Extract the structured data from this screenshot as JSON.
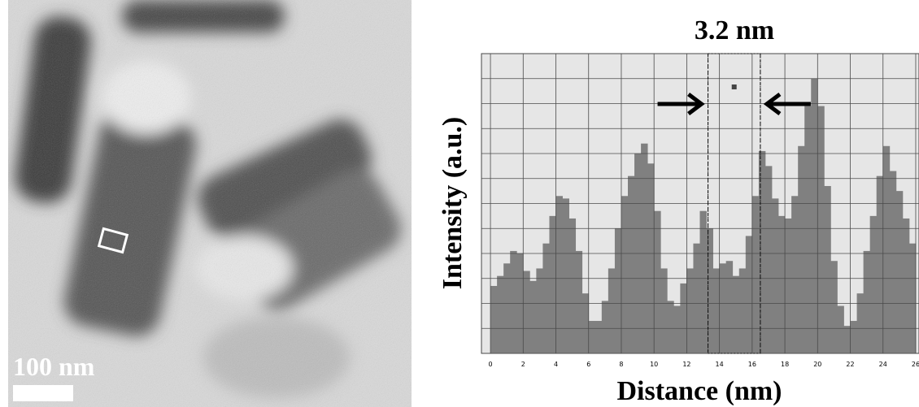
{
  "image": {
    "scale_bar_label": "100 nm"
  },
  "chart_data": {
    "type": "histogram",
    "annotation": "3.2 nm",
    "x_label": "Distance (nm)",
    "y_label": "Intensity (a.u.)",
    "bins": [
      0,
      0.4,
      0.8,
      1.2,
      1.6,
      2.0,
      2.4,
      2.8,
      3.2,
      3.6,
      4.0,
      4.4,
      4.8,
      5.2,
      5.6,
      6.0,
      6.4,
      6.8,
      7.2,
      7.6,
      8.0,
      8.4,
      8.8,
      9.2,
      9.6,
      10.0,
      10.4,
      10.8,
      11.2,
      11.6,
      12.0,
      12.4,
      12.8,
      13.2,
      13.6,
      14.0,
      14.4,
      14.8,
      15.2,
      15.6,
      16.0,
      16.4,
      16.8,
      17.2,
      17.6,
      18.0,
      18.4,
      18.8,
      19.2,
      19.6,
      20.0,
      20.4,
      20.8,
      21.2,
      21.6,
      22.0,
      22.4,
      22.8,
      23.2,
      23.6,
      24.0,
      24.4,
      24.8,
      25.2,
      25.6,
      26.0
    ],
    "values": [
      2.7,
      3.1,
      3.6,
      4.1,
      4.0,
      3.3,
      2.9,
      3.4,
      4.4,
      5.5,
      6.3,
      6.2,
      5.4,
      4.1,
      2.4,
      1.3,
      1.3,
      2.1,
      3.4,
      5.0,
      6.3,
      7.1,
      8.0,
      8.4,
      7.6,
      5.7,
      3.4,
      2.1,
      1.9,
      2.8,
      3.4,
      4.4,
      5.7,
      5.0,
      3.4,
      3.6,
      3.7,
      3.1,
      3.4,
      4.7,
      6.3,
      8.1,
      7.5,
      6.2,
      5.5,
      5.4,
      6.3,
      8.3,
      9.9,
      11.0,
      9.9,
      6.7,
      3.7,
      1.9,
      1.1,
      1.3,
      2.4,
      4.1,
      5.5,
      7.1,
      8.3,
      7.3,
      6.5,
      5.4,
      4.4
    ],
    "color": "#808080",
    "highlight": [
      13.3,
      16.5
    ],
    "xlim": [
      -0.55,
      26.2
    ],
    "xticks": [
      0,
      2,
      4,
      6,
      8,
      10,
      12,
      14,
      16,
      18,
      20,
      22,
      24,
      26
    ],
    "ylim": [
      0,
      12
    ],
    "yticks": [
      0,
      1,
      2,
      3,
      4,
      5,
      6,
      7,
      8,
      9,
      10,
      11,
      12
    ],
    "grid": true
  }
}
